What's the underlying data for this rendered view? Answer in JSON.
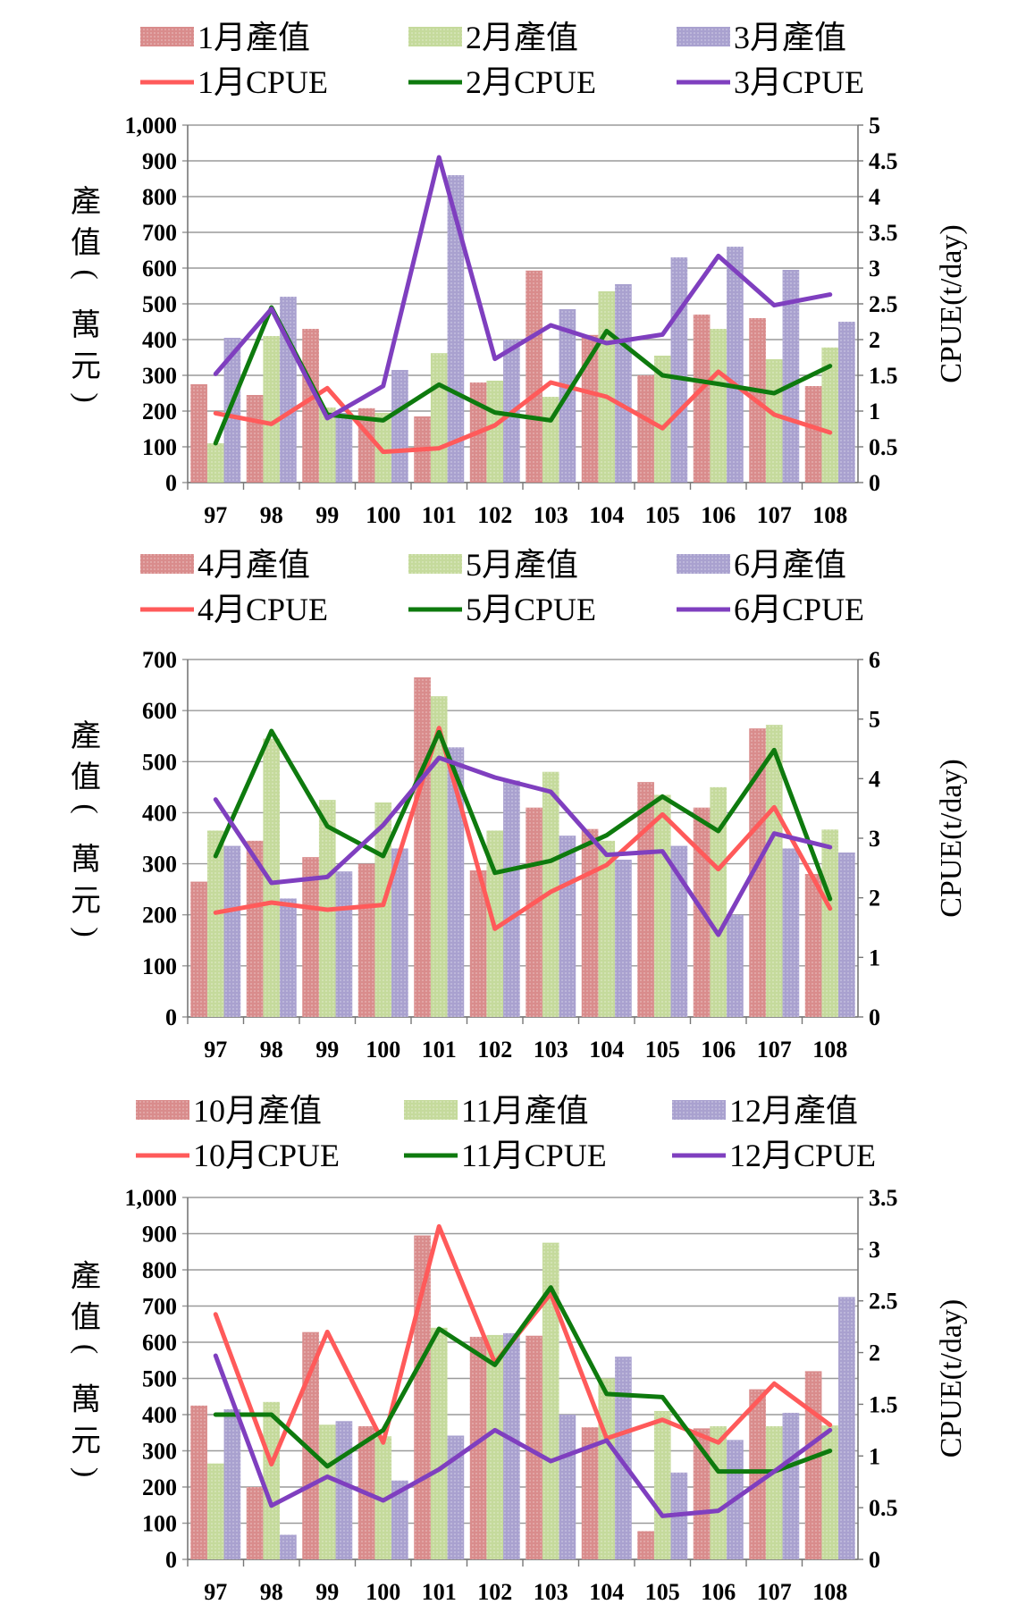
{
  "chart_data": [
    {
      "type": "bar+line",
      "categories": [
        "97",
        "98",
        "99",
        "100",
        "101",
        "102",
        "103",
        "104",
        "105",
        "106",
        "107",
        "108"
      ],
      "ylabel": "產值(萬元)",
      "ylabel_chars": [
        "產",
        "值",
        "(",
        "萬",
        "元",
        ")"
      ],
      "y2label": "CPUE(t/day)",
      "ylim": [
        0,
        1000
      ],
      "y2lim": [
        0,
        5
      ],
      "yticks": [
        0,
        100,
        200,
        300,
        400,
        500,
        600,
        700,
        800,
        900,
        1000
      ],
      "yticks_fmt": [
        "0",
        "100",
        "200",
        "300",
        "400",
        "500",
        "600",
        "700",
        "800",
        "900",
        "1,000"
      ],
      "y2ticks": [
        0,
        0.5,
        1,
        1.5,
        2,
        2.5,
        3,
        3.5,
        4,
        4.5,
        5
      ],
      "y2ticks_fmt": [
        "0",
        "0.5",
        "1",
        "1.5",
        "2",
        "2.5",
        "3",
        "3.5",
        "4",
        "4.5",
        "5"
      ],
      "bar_series": [
        {
          "name": "1月產值",
          "color": "#D98C8C",
          "values": [
            275,
            245,
            430,
            208,
            185,
            280,
            593,
            413,
            300,
            470,
            460,
            270
          ]
        },
        {
          "name": "2月產值",
          "color": "#C5DA9C",
          "values": [
            110,
            410,
            210,
            195,
            362,
            285,
            240,
            535,
            355,
            430,
            345,
            378
          ]
        },
        {
          "name": "3月產值",
          "color": "#A9A1CF",
          "values": [
            405,
            520,
            195,
            315,
            860,
            400,
            485,
            555,
            630,
            660,
            595,
            450
          ]
        }
      ],
      "line_series": [
        {
          "name": "1月CPUE",
          "color": "#FF5A5A",
          "values": [
            0.97,
            0.82,
            1.32,
            0.43,
            0.48,
            0.8,
            1.4,
            1.2,
            0.76,
            1.55,
            0.95,
            0.7
          ]
        },
        {
          "name": "2月CPUE",
          "color": "#0E7A0E",
          "values": [
            0.55,
            2.45,
            0.95,
            0.87,
            1.37,
            0.98,
            0.87,
            2.12,
            1.5,
            1.38,
            1.25,
            1.63
          ]
        },
        {
          "name": "3月CPUE",
          "color": "#7F3FBF",
          "values": [
            1.52,
            2.43,
            0.9,
            1.35,
            4.55,
            1.73,
            2.2,
            1.95,
            2.07,
            3.17,
            2.48,
            2.63
          ]
        }
      ]
    },
    {
      "type": "bar+line",
      "categories": [
        "97",
        "98",
        "99",
        "100",
        "101",
        "102",
        "103",
        "104",
        "105",
        "106",
        "107",
        "108"
      ],
      "ylabel": "產值(萬元)",
      "ylabel_chars": [
        "產",
        "值",
        "(",
        "萬",
        "元",
        ")"
      ],
      "y2label": "CPUE(t/day)",
      "ylim": [
        0,
        700
      ],
      "y2lim": [
        0,
        6
      ],
      "yticks": [
        0,
        100,
        200,
        300,
        400,
        500,
        600,
        700
      ],
      "yticks_fmt": [
        "0",
        "100",
        "200",
        "300",
        "400",
        "500",
        "600",
        "700"
      ],
      "y2ticks": [
        0,
        1,
        2,
        3,
        4,
        5,
        6
      ],
      "y2ticks_fmt": [
        "0",
        "1",
        "2",
        "3",
        "4",
        "5",
        "6"
      ],
      "bar_series": [
        {
          "name": "4月產值",
          "color": "#D98C8C",
          "values": [
            265,
            345,
            313,
            300,
            665,
            287,
            410,
            368,
            460,
            410,
            565,
            280
          ]
        },
        {
          "name": "5月產值",
          "color": "#C5DA9C",
          "values": [
            365,
            545,
            425,
            420,
            628,
            365,
            480,
            345,
            435,
            450,
            572,
            367
          ]
        },
        {
          "name": "6月產值",
          "color": "#A9A1CF",
          "values": [
            335,
            232,
            285,
            330,
            528,
            463,
            355,
            308,
            335,
            200,
            330,
            322
          ]
        }
      ],
      "line_series": [
        {
          "name": "4月CPUE",
          "color": "#FF5A5A",
          "values": [
            1.75,
            1.92,
            1.8,
            1.88,
            4.85,
            1.48,
            2.1,
            2.55,
            3.4,
            2.48,
            3.52,
            1.82
          ]
        },
        {
          "name": "5月CPUE",
          "color": "#0E7A0E",
          "values": [
            2.7,
            4.8,
            3.2,
            2.7,
            4.78,
            2.42,
            2.62,
            3.05,
            3.7,
            3.12,
            4.48,
            1.98
          ]
        },
        {
          "name": "6月CPUE",
          "color": "#7F3FBF",
          "values": [
            3.65,
            2.25,
            2.35,
            3.22,
            4.35,
            4.02,
            3.78,
            2.72,
            2.78,
            1.38,
            3.08,
            2.85
          ]
        }
      ]
    },
    {
      "type": "bar+line",
      "categories": [
        "97",
        "98",
        "99",
        "100",
        "101",
        "102",
        "103",
        "104",
        "105",
        "106",
        "107",
        "108"
      ],
      "ylabel": "產值(萬元)",
      "ylabel_chars": [
        "產",
        "值",
        "(",
        "萬",
        "元",
        ")"
      ],
      "y2label": "CPUE(t/day)",
      "ylim": [
        0,
        1000
      ],
      "y2lim": [
        0,
        3.5
      ],
      "yticks": [
        0,
        100,
        200,
        300,
        400,
        500,
        600,
        700,
        800,
        900,
        1000
      ],
      "yticks_fmt": [
        "0",
        "100",
        "200",
        "300",
        "400",
        "500",
        "600",
        "700",
        "800",
        "900",
        "1,000"
      ],
      "y2ticks": [
        0,
        0.5,
        1,
        1.5,
        2,
        2.5,
        3,
        3.5
      ],
      "y2ticks_fmt": [
        "0",
        "0.5",
        "1",
        "1.5",
        "2",
        "2.5",
        "3",
        "3.5"
      ],
      "bar_series": [
        {
          "name": "10月產值",
          "color": "#D98C8C",
          "values": [
            425,
            200,
            628,
            368,
            895,
            615,
            618,
            365,
            78,
            362,
            470,
            520
          ]
        },
        {
          "name": "11月產值",
          "color": "#C5DA9C",
          "values": [
            265,
            435,
            372,
            340,
            640,
            620,
            875,
            500,
            410,
            368,
            368,
            370
          ]
        },
        {
          "name": "12月產值",
          "color": "#A9A1CF",
          "values": [
            415,
            68,
            382,
            218,
            342,
            625,
            400,
            560,
            240,
            330,
            405,
            725
          ]
        }
      ],
      "line_series": [
        {
          "name": "10月CPUE",
          "color": "#FF5A5A",
          "values": [
            2.37,
            0.92,
            2.2,
            1.13,
            3.22,
            1.9,
            2.57,
            1.17,
            1.35,
            1.13,
            1.7,
            1.3
          ]
        },
        {
          "name": "11月CPUE",
          "color": "#0E7A0E",
          "values": [
            1.4,
            1.4,
            0.9,
            1.25,
            2.23,
            1.88,
            2.63,
            1.6,
            1.57,
            0.85,
            0.85,
            1.05
          ]
        },
        {
          "name": "12月CPUE",
          "color": "#7F3FBF",
          "values": [
            1.97,
            0.52,
            0.8,
            0.57,
            0.87,
            1.25,
            0.95,
            1.15,
            0.42,
            0.47,
            0.85,
            1.25
          ]
        }
      ]
    }
  ]
}
